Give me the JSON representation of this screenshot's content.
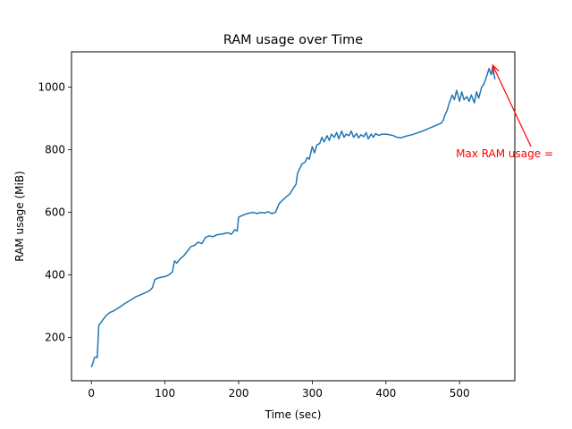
{
  "chart_data": {
    "type": "line",
    "title": "RAM usage over Time",
    "xlabel": "Time (sec)",
    "ylabel": "RAM usage (MiB)",
    "xlim": [
      -27,
      575
    ],
    "ylim": [
      62,
      1113
    ],
    "xticks": [
      0,
      100,
      200,
      300,
      400,
      500
    ],
    "yticks": [
      200,
      400,
      600,
      800,
      1000
    ],
    "grid": false,
    "line_color": "#1f77b4",
    "annotation": {
      "text": "Max RAM usage = ",
      "color": "#ff0000",
      "point": [
        545,
        1070
      ],
      "text_pos": [
        495,
        776
      ]
    },
    "series": [
      {
        "x": [
          0,
          2,
          4,
          6,
          8,
          10,
          12,
          15,
          20,
          25,
          30,
          35,
          40,
          45,
          50,
          55,
          60,
          65,
          70,
          75,
          80,
          83,
          86,
          90,
          95,
          100,
          105,
          110,
          113,
          116,
          120,
          125,
          130,
          135,
          140,
          145,
          150,
          155,
          160,
          165,
          170,
          175,
          180,
          185,
          190,
          195,
          198,
          200,
          205,
          210,
          215,
          220,
          225,
          230,
          235,
          240,
          245,
          250,
          255,
          260,
          265,
          270,
          275,
          278,
          280,
          283,
          286,
          290,
          293,
          296,
          300,
          303,
          306,
          310,
          313,
          316,
          320,
          323,
          326,
          330,
          333,
          336,
          340,
          343,
          346,
          350,
          353,
          356,
          360,
          363,
          366,
          370,
          373,
          376,
          380,
          383,
          386,
          390,
          395,
          400,
          405,
          410,
          415,
          420,
          425,
          430,
          435,
          440,
          445,
          450,
          455,
          460,
          465,
          470,
          475,
          478,
          480,
          483,
          486,
          490,
          493,
          496,
          500,
          503,
          506,
          510,
          513,
          516,
          520,
          523,
          526,
          530,
          533,
          536,
          540,
          543,
          545,
          548
        ],
        "y": [
          105,
          118,
          135,
          138,
          136,
          238,
          245,
          255,
          270,
          280,
          285,
          292,
          300,
          308,
          315,
          322,
          330,
          335,
          340,
          345,
          352,
          360,
          385,
          390,
          393,
          395,
          400,
          410,
          445,
          438,
          450,
          460,
          475,
          490,
          495,
          505,
          500,
          520,
          525,
          522,
          528,
          530,
          532,
          535,
          530,
          545,
          540,
          585,
          590,
          595,
          598,
          600,
          596,
          600,
          598,
          602,
          596,
          600,
          628,
          640,
          650,
          660,
          680,
          690,
          725,
          740,
          755,
          760,
          775,
          770,
          810,
          790,
          815,
          820,
          840,
          825,
          845,
          830,
          850,
          840,
          855,
          835,
          860,
          840,
          850,
          845,
          860,
          840,
          852,
          838,
          848,
          842,
          855,
          835,
          850,
          840,
          852,
          846,
          850,
          850,
          848,
          845,
          840,
          838,
          842,
          845,
          848,
          852,
          856,
          860,
          865,
          870,
          875,
          880,
          885,
          895,
          910,
          925,
          950,
          975,
          960,
          990,
          955,
          985,
          960,
          970,
          955,
          975,
          950,
          985,
          965,
          1000,
          1010,
          1030,
          1060,
          1040,
          1065,
          1025
        ]
      }
    ]
  }
}
